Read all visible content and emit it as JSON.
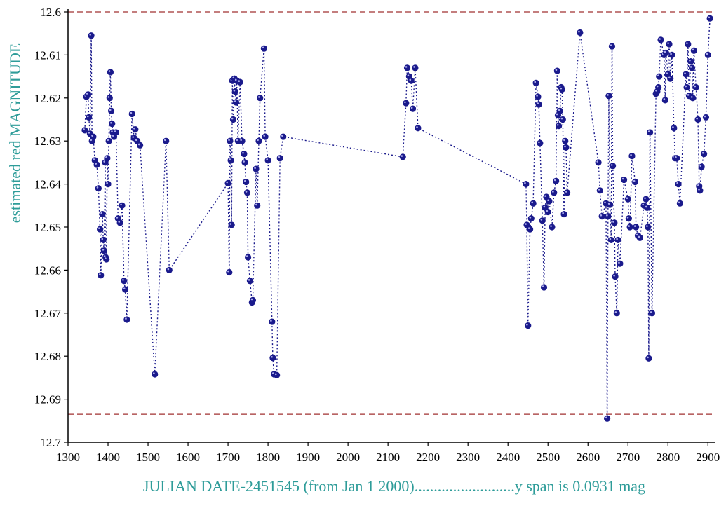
{
  "chart_data": {
    "type": "scatter",
    "xlabel": "JULIAN DATE-2451545 (from Jan 1 2000)..........................y span is 0.0931 mag",
    "ylabel": "estimated red MAGNITUDE",
    "xlim": [
      1300,
      2910
    ],
    "ylim": [
      12.6,
      12.7
    ],
    "y_inverted": true,
    "grid": false,
    "x_ticks": [
      "1300",
      "1400",
      "1500",
      "1600",
      "1700",
      "1800",
      "1900",
      "2000",
      "2100",
      "2200",
      "2300",
      "2400",
      "2500",
      "2600",
      "2700",
      "2800",
      "2900"
    ],
    "y_ticks": [
      "12.6",
      "12.61",
      "12.62",
      "12.63",
      "12.64",
      "12.65",
      "12.66",
      "12.67",
      "12.68",
      "12.69",
      "12.7"
    ],
    "reference_lines": [
      12.6,
      12.6935
    ],
    "colors": {
      "points": "#1a1a8c",
      "connector": "#1a1a8c",
      "reference_lines": "#a03030",
      "axis_titles": "#2e9c99"
    },
    "series": [
      {
        "connected": true,
        "points": [
          [
            1342,
            12.6275
          ],
          [
            1346,
            12.6197
          ],
          [
            1350,
            12.6192
          ],
          [
            1352,
            12.6245
          ],
          [
            1355,
            12.6283
          ],
          [
            1358,
            12.6055
          ],
          [
            1360,
            12.63
          ],
          [
            1363,
            12.629
          ],
          [
            1367,
            12.6345
          ],
          [
            1372,
            12.6355
          ],
          [
            1376,
            12.641
          ],
          [
            1380,
            12.6505
          ],
          [
            1382,
            12.6612
          ],
          [
            1386,
            12.647
          ],
          [
            1388,
            12.653
          ],
          [
            1390,
            12.6555
          ],
          [
            1393,
            12.635
          ],
          [
            1394,
            12.657
          ],
          [
            1396,
            12.6575
          ],
          [
            1398,
            12.634
          ],
          [
            1400,
            12.64
          ],
          [
            1402,
            12.63
          ],
          [
            1404,
            12.62
          ],
          [
            1406,
            12.614
          ],
          [
            1408,
            12.623
          ],
          [
            1410,
            12.626
          ],
          [
            1412,
            12.628
          ],
          [
            1415,
            12.629
          ],
          [
            1420,
            12.628
          ],
          [
            1425,
            12.648
          ],
          [
            1430,
            12.649
          ],
          [
            1435,
            12.645
          ],
          [
            1440,
            12.6625
          ],
          [
            1443,
            12.6645
          ],
          [
            1447,
            12.6715
          ],
          [
            1460,
            12.6237
          ],
          [
            1465,
            12.6293
          ],
          [
            1468,
            12.6273
          ],
          [
            1473,
            12.63
          ],
          [
            1480,
            12.631
          ],
          [
            1517,
            12.6842
          ],
          [
            1545,
            12.63
          ],
          [
            1553,
            12.66
          ],
          [
            1700,
            12.6398
          ],
          [
            1703,
            12.6605
          ],
          [
            1705,
            12.63
          ],
          [
            1707,
            12.6345
          ],
          [
            1709,
            12.6495
          ],
          [
            1711,
            12.616
          ],
          [
            1713,
            12.625
          ],
          [
            1716,
            12.6155
          ],
          [
            1718,
            12.6185
          ],
          [
            1720,
            12.621
          ],
          [
            1722,
            12.616
          ],
          [
            1725,
            12.63
          ],
          [
            1730,
            12.6163
          ],
          [
            1735,
            12.63
          ],
          [
            1740,
            12.633
          ],
          [
            1742,
            12.635
          ],
          [
            1745,
            12.6395
          ],
          [
            1748,
            12.642
          ],
          [
            1750,
            12.657
          ],
          [
            1755,
            12.6625
          ],
          [
            1760,
            12.6675
          ],
          [
            1762,
            12.667
          ],
          [
            1770,
            12.6365
          ],
          [
            1773,
            12.645
          ],
          [
            1777,
            12.63
          ],
          [
            1780,
            12.62
          ],
          [
            1790,
            12.6085
          ],
          [
            1793,
            12.629
          ],
          [
            1800,
            12.6345
          ],
          [
            1810,
            12.672
          ],
          [
            1812,
            12.6804
          ],
          [
            1815,
            12.6842
          ],
          [
            1822,
            12.6844
          ],
          [
            1830,
            12.634
          ],
          [
            1838,
            12.629
          ],
          [
            2137,
            12.6337
          ],
          [
            2145,
            12.6212
          ],
          [
            2148,
            12.613
          ],
          [
            2153,
            12.615
          ],
          [
            2158,
            12.616
          ],
          [
            2162,
            12.6225
          ],
          [
            2168,
            12.613
          ],
          [
            2175,
            12.627
          ],
          [
            2445,
            12.64
          ],
          [
            2447,
            12.6495
          ],
          [
            2450,
            12.6729
          ],
          [
            2455,
            12.6505
          ],
          [
            2458,
            12.648
          ],
          [
            2463,
            12.6445
          ],
          [
            2470,
            12.6165
          ],
          [
            2475,
            12.6197
          ],
          [
            2477,
            12.6215
          ],
          [
            2480,
            12.6305
          ],
          [
            2486,
            12.6485
          ],
          [
            2490,
            12.664
          ],
          [
            2493,
            12.6455
          ],
          [
            2496,
            12.643
          ],
          [
            2500,
            12.6465
          ],
          [
            2503,
            12.644
          ],
          [
            2510,
            12.65
          ],
          [
            2515,
            12.642
          ],
          [
            2520,
            12.6393
          ],
          [
            2523,
            12.6137
          ],
          [
            2525,
            12.624
          ],
          [
            2527,
            12.6265
          ],
          [
            2530,
            12.623
          ],
          [
            2533,
            12.6175
          ],
          [
            2535,
            12.618
          ],
          [
            2537,
            12.625
          ],
          [
            2540,
            12.647
          ],
          [
            2543,
            12.63
          ],
          [
            2545,
            12.6315
          ],
          [
            2548,
            12.642
          ],
          [
            2580,
            12.6048
          ],
          [
            2626,
            12.635
          ],
          [
            2630,
            12.6415
          ],
          [
            2635,
            12.6475
          ],
          [
            2645,
            12.6445
          ],
          [
            2648,
            12.6945
          ],
          [
            2650,
            12.6475
          ],
          [
            2652,
            12.6195
          ],
          [
            2655,
            12.6448
          ],
          [
            2658,
            12.653
          ],
          [
            2660,
            12.608
          ],
          [
            2662,
            12.6358
          ],
          [
            2666,
            12.649
          ],
          [
            2668,
            12.6615
          ],
          [
            2672,
            12.67
          ],
          [
            2675,
            12.653
          ],
          [
            2680,
            12.6585
          ],
          [
            2690,
            12.639
          ],
          [
            2700,
            12.6435
          ],
          [
            2702,
            12.648
          ],
          [
            2705,
            12.65
          ],
          [
            2710,
            12.6335
          ],
          [
            2718,
            12.6395
          ],
          [
            2720,
            12.65
          ],
          [
            2725,
            12.652
          ],
          [
            2730,
            12.6525
          ],
          [
            2740,
            12.645
          ],
          [
            2745,
            12.6435
          ],
          [
            2748,
            12.6455
          ],
          [
            2750,
            12.65
          ],
          [
            2752,
            12.6805
          ],
          [
            2755,
            12.628
          ],
          [
            2760,
            12.67
          ],
          [
            2770,
            12.619
          ],
          [
            2773,
            12.6185
          ],
          [
            2776,
            12.6175
          ],
          [
            2778,
            12.615
          ],
          [
            2782,
            12.6065
          ],
          [
            2790,
            12.61
          ],
          [
            2793,
            12.6205
          ],
          [
            2795,
            12.6095
          ],
          [
            2800,
            12.6145
          ],
          [
            2803,
            12.6075
          ],
          [
            2806,
            12.6155
          ],
          [
            2810,
            12.61
          ],
          [
            2815,
            12.627
          ],
          [
            2818,
            12.634
          ],
          [
            2822,
            12.634
          ],
          [
            2826,
            12.64
          ],
          [
            2830,
            12.6445
          ],
          [
            2845,
            12.6145
          ],
          [
            2847,
            12.6175
          ],
          [
            2850,
            12.6075
          ],
          [
            2853,
            12.6195
          ],
          [
            2857,
            12.6115
          ],
          [
            2860,
            12.613
          ],
          [
            2862,
            12.62
          ],
          [
            2865,
            12.609
          ],
          [
            2870,
            12.6175
          ],
          [
            2875,
            12.625
          ],
          [
            2878,
            12.6405
          ],
          [
            2880,
            12.6415
          ],
          [
            2884,
            12.636
          ],
          [
            2890,
            12.633
          ],
          [
            2895,
            12.6245
          ],
          [
            2900,
            12.61
          ],
          [
            2905,
            12.6015
          ]
        ]
      }
    ]
  }
}
